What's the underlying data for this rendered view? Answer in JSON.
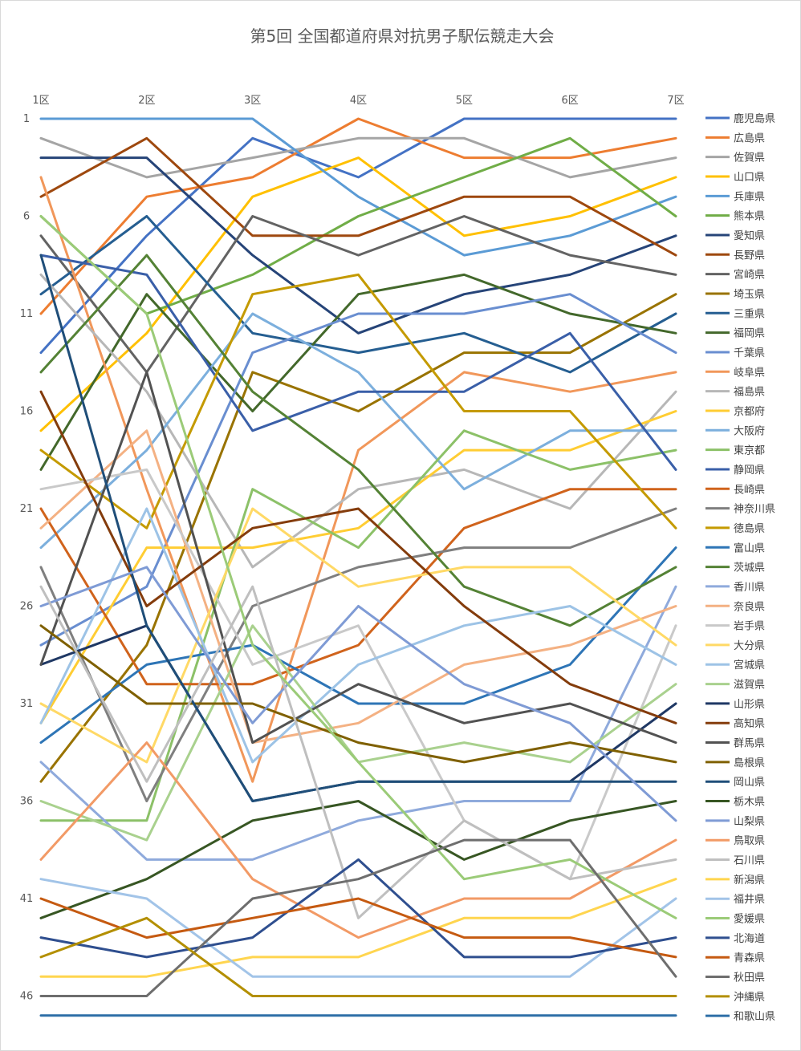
{
  "chart_data": {
    "type": "line",
    "title": "第5回 全国都道府県対抗男子駅伝競走大会",
    "x": [
      "1区",
      "2区",
      "3区",
      "4区",
      "5区",
      "6区",
      "7区"
    ],
    "y_ticks": [
      1,
      6,
      11,
      16,
      21,
      26,
      31,
      36,
      41,
      46
    ],
    "ylim": [
      1,
      47
    ],
    "y_reversed": true,
    "legend_position": "right",
    "series": [
      {
        "name": "鹿児島県",
        "color": "#4472C4",
        "values": [
          13,
          7,
          2,
          4,
          1,
          1,
          1
        ]
      },
      {
        "name": "広島県",
        "color": "#ED7D31",
        "values": [
          11,
          5,
          4,
          1,
          3,
          3,
          2
        ]
      },
      {
        "name": "佐賀県",
        "color": "#A5A5A5",
        "values": [
          2,
          4,
          3,
          2,
          2,
          4,
          3
        ]
      },
      {
        "name": "山口県",
        "color": "#FFC000",
        "values": [
          17,
          12,
          5,
          3,
          7,
          6,
          4
        ]
      },
      {
        "name": "兵庫県",
        "color": "#5B9BD5",
        "values": [
          1,
          1,
          1,
          5,
          8,
          7,
          5
        ]
      },
      {
        "name": "熊本県",
        "color": "#70AD47",
        "values": [
          6,
          11,
          9,
          6,
          4,
          2,
          6
        ]
      },
      {
        "name": "愛知県",
        "color": "#264478",
        "values": [
          3,
          3,
          8,
          12,
          10,
          9,
          7
        ]
      },
      {
        "name": "長野県",
        "color": "#9E480E",
        "values": [
          5,
          2,
          7,
          7,
          5,
          5,
          8
        ]
      },
      {
        "name": "宮崎県",
        "color": "#636363",
        "values": [
          7,
          14,
          6,
          8,
          6,
          8,
          9
        ]
      },
      {
        "name": "埼玉県",
        "color": "#997300",
        "values": [
          35,
          28,
          14,
          16,
          13,
          13,
          10
        ]
      },
      {
        "name": "三重県",
        "color": "#255E91",
        "values": [
          10,
          6,
          12,
          13,
          12,
          14,
          11
        ]
      },
      {
        "name": "福岡県",
        "color": "#43682B",
        "values": [
          19,
          10,
          16,
          10,
          9,
          11,
          12
        ]
      },
      {
        "name": "千葉県",
        "color": "#698ED0",
        "values": [
          28,
          25,
          13,
          11,
          11,
          10,
          13
        ]
      },
      {
        "name": "岐阜県",
        "color": "#F1975A",
        "values": [
          4,
          20,
          35,
          18,
          14,
          15,
          14
        ]
      },
      {
        "name": "福島県",
        "color": "#B7B7B7",
        "values": [
          9,
          15,
          24,
          20,
          19,
          21,
          15
        ]
      },
      {
        "name": "京都府",
        "color": "#FFCD33",
        "values": [
          32,
          23,
          23,
          22,
          18,
          18,
          16
        ]
      },
      {
        "name": "大阪府",
        "color": "#7CAFDD",
        "values": [
          23,
          18,
          11,
          14,
          20,
          17,
          17
        ]
      },
      {
        "name": "東京都",
        "color": "#8CC168",
        "values": [
          37,
          37,
          20,
          23,
          17,
          19,
          18
        ]
      },
      {
        "name": "静岡県",
        "color": "#3A5FA8",
        "values": [
          8,
          9,
          17,
          15,
          15,
          12,
          19
        ]
      },
      {
        "name": "長崎県",
        "color": "#D0631C",
        "values": [
          21,
          30,
          30,
          28,
          22,
          20,
          20
        ]
      },
      {
        "name": "神奈川県",
        "color": "#7F7F7F",
        "values": [
          24,
          36,
          26,
          24,
          23,
          23,
          21
        ]
      },
      {
        "name": "徳島県",
        "color": "#C49A00",
        "values": [
          18,
          22,
          10,
          9,
          16,
          16,
          22
        ]
      },
      {
        "name": "富山県",
        "color": "#2E75B6",
        "values": [
          33,
          29,
          28,
          31,
          31,
          29,
          23
        ]
      },
      {
        "name": "茨城県",
        "color": "#548235",
        "values": [
          14,
          8,
          15,
          19,
          25,
          27,
          24
        ]
      },
      {
        "name": "香川県",
        "color": "#8FAADC",
        "values": [
          34,
          39,
          39,
          37,
          36,
          36,
          25
        ]
      },
      {
        "name": "奈良県",
        "color": "#F4B183",
        "values": [
          22,
          17,
          33,
          32,
          29,
          28,
          26
        ]
      },
      {
        "name": "岩手県",
        "color": "#C9C9C9",
        "values": [
          20,
          19,
          29,
          27,
          37,
          40,
          27
        ]
      },
      {
        "name": "大分県",
        "color": "#FFD966",
        "values": [
          31,
          34,
          21,
          25,
          24,
          24,
          28
        ]
      },
      {
        "name": "宮城県",
        "color": "#9DC3E6",
        "values": [
          32,
          21,
          34,
          29,
          27,
          26,
          29
        ]
      },
      {
        "name": "滋賀県",
        "color": "#A9D18E",
        "values": [
          36,
          38,
          27,
          34,
          33,
          34,
          30
        ]
      },
      {
        "name": "山形県",
        "color": "#1F3864",
        "values": [
          29,
          27,
          36,
          35,
          35,
          35,
          31
        ]
      },
      {
        "name": "高知県",
        "color": "#843C0C",
        "values": [
          15,
          26,
          22,
          21,
          26,
          30,
          32
        ]
      },
      {
        "name": "群馬県",
        "color": "#525252",
        "values": [
          29,
          14,
          33,
          30,
          32,
          31,
          33
        ]
      },
      {
        "name": "島根県",
        "color": "#7F6000",
        "values": [
          27,
          31,
          31,
          33,
          34,
          33,
          34
        ]
      },
      {
        "name": "岡山県",
        "color": "#1F4E79",
        "values": [
          8,
          27,
          36,
          35,
          35,
          35,
          35
        ]
      },
      {
        "name": "栃木県",
        "color": "#375623",
        "values": [
          42,
          40,
          37,
          36,
          39,
          37,
          36
        ]
      },
      {
        "name": "山梨県",
        "color": "#7F9BD5",
        "values": [
          26,
          24,
          32,
          26,
          30,
          32,
          37
        ]
      },
      {
        "name": "鳥取県",
        "color": "#F29A66",
        "values": [
          39,
          33,
          40,
          43,
          41,
          41,
          38
        ]
      },
      {
        "name": "石川県",
        "color": "#BFBFBF",
        "values": [
          25,
          35,
          25,
          42,
          37,
          40,
          39
        ]
      },
      {
        "name": "新潟県",
        "color": "#FFD54F",
        "values": [
          45,
          45,
          44,
          44,
          42,
          42,
          40
        ]
      },
      {
        "name": "福井県",
        "color": "#A2C4E8",
        "values": [
          40,
          41,
          45,
          45,
          45,
          45,
          41
        ]
      },
      {
        "name": "愛媛県",
        "color": "#9BCB78",
        "values": [
          6,
          11,
          28,
          34,
          40,
          39,
          42
        ]
      },
      {
        "name": "北海道",
        "color": "#2F4F8F",
        "values": [
          43,
          44,
          43,
          39,
          44,
          44,
          43
        ]
      },
      {
        "name": "青森県",
        "color": "#C55A11",
        "values": [
          41,
          43,
          42,
          41,
          43,
          43,
          44
        ]
      },
      {
        "name": "秋田県",
        "color": "#6E6E6E",
        "values": [
          46,
          46,
          41,
          40,
          38,
          38,
          45
        ]
      },
      {
        "name": "沖縄県",
        "color": "#B38F00",
        "values": [
          44,
          42,
          46,
          46,
          46,
          46,
          46
        ]
      },
      {
        "name": "和歌山県",
        "color": "#2E6FA7",
        "values": [
          47,
          47,
          47,
          47,
          47,
          47,
          47
        ]
      }
    ]
  }
}
